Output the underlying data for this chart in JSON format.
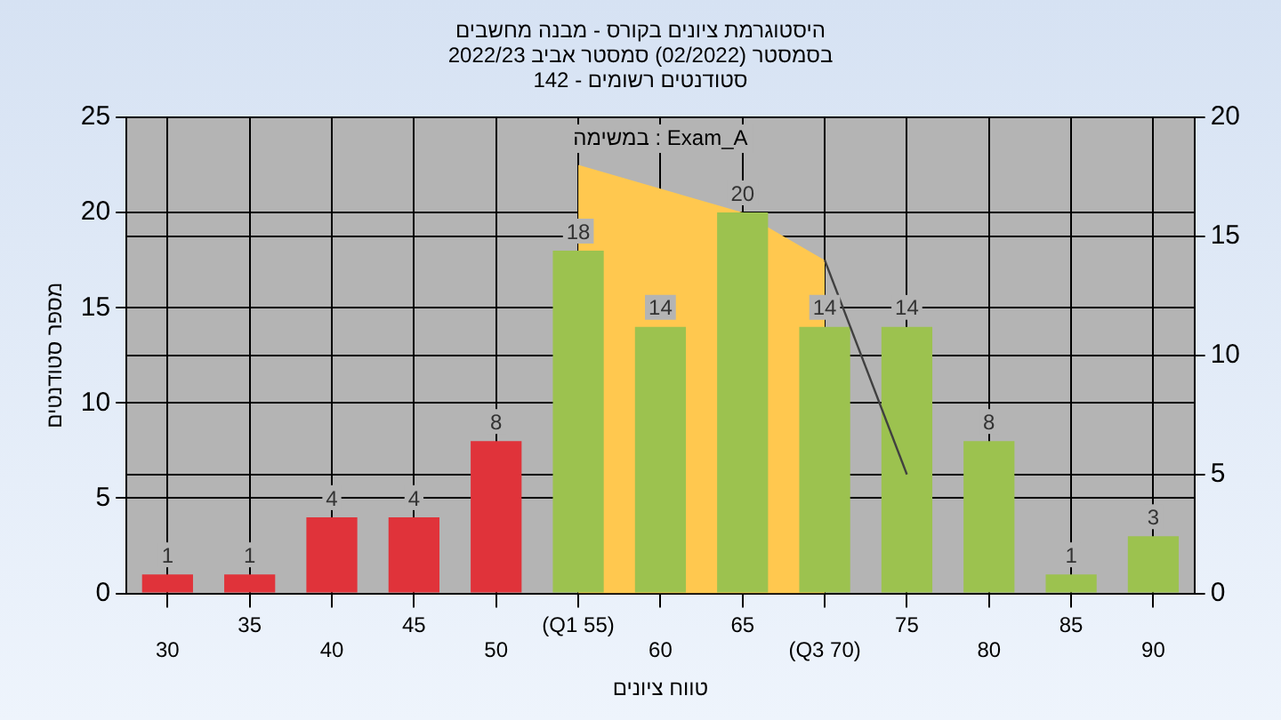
{
  "chart_data": {
    "type": "bar",
    "title": "היסטוגרמת ציונים בקורס - מבנה מחשבים",
    "subtitle": "בסמסטר (02/2022) סמסטר אביב 2022/23\nסטודנטים רשומים - 142",
    "xlabel": "טווח ציונים",
    "ylabel": "מספר סטודנטים",
    "annotations": [
      "במשימה : Exam_A"
    ],
    "categories": [
      "30",
      "35",
      "40",
      "45",
      "50",
      "(Q1 55)",
      "60",
      "65",
      "(Q3 70)",
      "75",
      "80",
      "85",
      "90"
    ],
    "series": [
      {
        "colors": [
          "#e0333a",
          "#e0333a",
          "#e0333a",
          "#e0333a",
          "#e0333a",
          "#9cc24f",
          "#9cc24f",
          "#9cc24f",
          "#9cc24f",
          "#9cc24f",
          "#9cc24f",
          "#9cc24f",
          "#9cc24f"
        ],
        "values": [
          1,
          1,
          4,
          4,
          8,
          18,
          14,
          20,
          14,
          14,
          8,
          1,
          3
        ],
        "value_labels": [
          "1",
          "1",
          "4",
          "4",
          "8",
          "18",
          "14",
          "20",
          "14",
          "14",
          "8",
          "1",
          "3"
        ]
      },
      {
        "type": "area",
        "axis": "y2",
        "color": "#ffc84f",
        "values": [
          null,
          null,
          null,
          null,
          null,
          18,
          17,
          16,
          14,
          null,
          null,
          null,
          null
        ]
      },
      {
        "type": "line",
        "axis": "y2",
        "color": "#404040",
        "values": [
          null,
          null,
          null,
          null,
          null,
          null,
          null,
          null,
          14,
          5,
          null,
          null,
          null
        ]
      }
    ],
    "ylim": [
      0,
      25
    ],
    "yticks": [
      0,
      5,
      10,
      15,
      20,
      25
    ],
    "y2lim": [
      0,
      20
    ],
    "y2ticks": [
      0,
      5,
      10,
      15,
      20
    ],
    "grid": true,
    "legend": false
  }
}
